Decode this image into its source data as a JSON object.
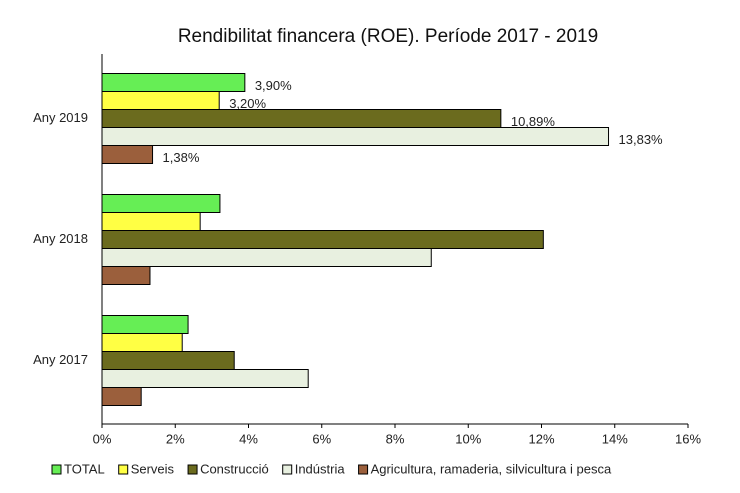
{
  "chart_data": {
    "type": "bar",
    "orientation": "horizontal",
    "title": "Rendibilitat financera (ROE). Període 2017 - 2019",
    "categories": [
      "Any 2019",
      "Any 2018",
      "Any 2017"
    ],
    "series": [
      {
        "name": "TOTAL",
        "color": "#66ee55",
        "values": [
          3.9,
          3.22,
          2.35
        ],
        "value_labels": [
          "3,90%",
          null,
          null
        ]
      },
      {
        "name": "Serveis",
        "color": "#ffff44",
        "values": [
          3.2,
          2.68,
          2.19
        ],
        "value_labels": [
          "3,20%",
          null,
          null
        ]
      },
      {
        "name": "Construcció",
        "color": "#6b6b1e",
        "values": [
          10.89,
          12.05,
          3.61
        ],
        "value_labels": [
          "10,89%",
          null,
          null
        ]
      },
      {
        "name": "Indústria",
        "color": "#e8f0e0",
        "values": [
          13.83,
          8.99,
          5.63
        ],
        "value_labels": [
          "13,83%",
          null,
          null
        ]
      },
      {
        "name": "Agricultura, ramaderia, silvicultura i pesca",
        "color": "#9b5f3c",
        "values": [
          1.38,
          1.31,
          1.07
        ],
        "value_labels": [
          "1,38%",
          null,
          null
        ]
      }
    ],
    "xlim": [
      0,
      16
    ],
    "xticks": [
      {
        "value": 0,
        "label": "0%"
      },
      {
        "value": 2,
        "label": "2%"
      },
      {
        "value": 4,
        "label": "4%"
      },
      {
        "value": 6,
        "label": "6%"
      },
      {
        "value": 8,
        "label": "8%"
      },
      {
        "value": 10,
        "label": "10%"
      },
      {
        "value": 12,
        "label": "12%"
      },
      {
        "value": 14,
        "label": "14%"
      },
      {
        "value": 16,
        "label": "16%"
      }
    ],
    "grid": false,
    "legend": "bottom"
  }
}
